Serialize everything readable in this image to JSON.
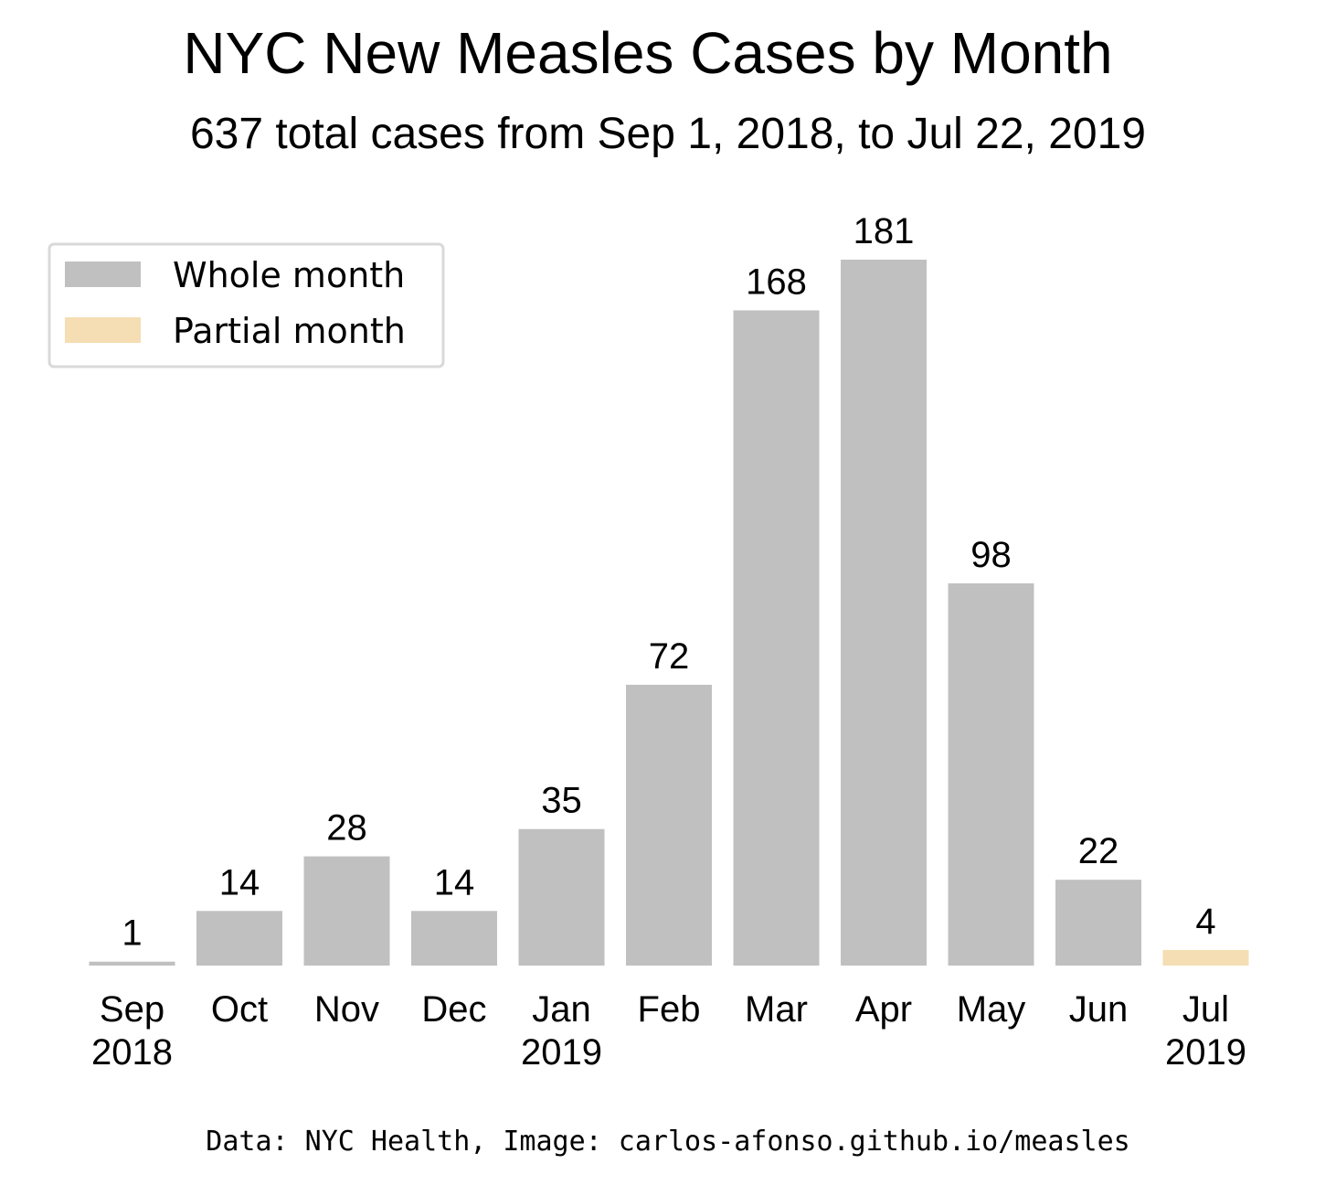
{
  "title": "NYC New Measles Cases by Month",
  "subtitle": "637 total cases from Sep 1, 2018, to Jul 22, 2019",
  "credit": "Data: NYC Health, Image: carlos-afonso.github.io/measles",
  "legend": {
    "items": [
      {
        "label": "Whole month",
        "color": "#c0c0c0"
      },
      {
        "label": "Partial month",
        "color": "#f5deb3"
      }
    ]
  },
  "chart_data": {
    "type": "bar",
    "categories": [
      [
        "Sep",
        "2018"
      ],
      [
        "Oct"
      ],
      [
        "Nov"
      ],
      [
        "Dec"
      ],
      [
        "Jan",
        "2019"
      ],
      [
        "Feb"
      ],
      [
        "Mar"
      ],
      [
        "Apr"
      ],
      [
        "May"
      ],
      [
        "Jun"
      ],
      [
        "Jul",
        "2019"
      ]
    ],
    "values": [
      1,
      14,
      28,
      14,
      35,
      72,
      168,
      181,
      98,
      22,
      4
    ],
    "partial": [
      false,
      false,
      false,
      false,
      false,
      false,
      false,
      false,
      false,
      false,
      true
    ],
    "colors": {
      "whole": "#c0c0c0",
      "partial": "#f5deb3"
    },
    "ylim": [
      0,
      181
    ],
    "grid": false,
    "legend_position": "top-left"
  }
}
